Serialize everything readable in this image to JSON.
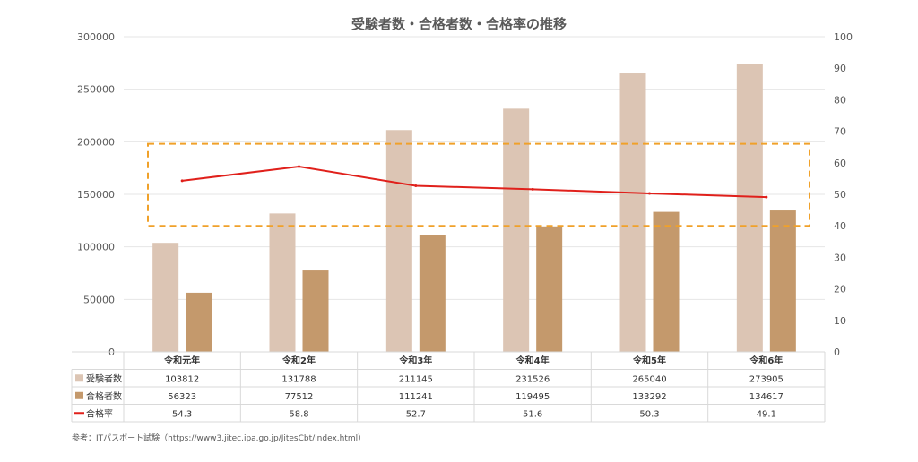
{
  "chart_data": {
    "type": "bar",
    "title": "受験者数・合格者数・合格率の推移",
    "categories": [
      "令和元年",
      "令和2年",
      "令和3年",
      "令和4年",
      "令和5年",
      "令和6年"
    ],
    "series": [
      {
        "name": "受験者数",
        "type": "bar",
        "axis": "left",
        "color": "#dcc5b4",
        "values": [
          103812,
          131788,
          211145,
          231526,
          265040,
          273905
        ]
      },
      {
        "name": "合格者数",
        "type": "bar",
        "axis": "left",
        "color": "#c4996c",
        "values": [
          56323,
          77512,
          111241,
          119495,
          133292,
          134617
        ]
      },
      {
        "name": "合格率",
        "type": "line",
        "axis": "right",
        "color": "#e0201b",
        "values": [
          54.3,
          58.8,
          52.7,
          51.6,
          50.3,
          49.1
        ]
      }
    ],
    "ylim": [
      0,
      300000
    ],
    "yticks": [
      0,
      50000,
      100000,
      150000,
      200000,
      250000,
      300000
    ],
    "y2lim": [
      0,
      100
    ],
    "y2ticks": [
      0,
      10,
      20,
      30,
      40,
      50,
      60,
      70,
      80,
      90,
      100
    ],
    "highlight_box": {
      "y2_range": [
        40,
        66
      ],
      "color": "#f0a12a",
      "style": "dashed"
    },
    "grid": true,
    "legend": "data-table"
  },
  "source_note": "参考：ITパスポート試験（https://www3.jitec.ipa.go.jp/JitesCbt/index.html）"
}
